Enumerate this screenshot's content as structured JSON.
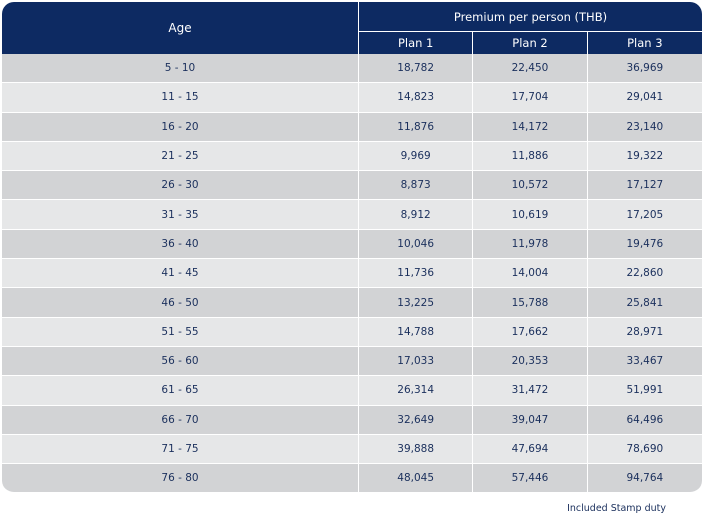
{
  "table": {
    "age_header": "Age",
    "premium_header": "Premium per person (THB)",
    "plans": [
      "Plan 1",
      "Plan 2",
      "Plan 3"
    ],
    "rows": [
      {
        "age": "5 - 10",
        "values": [
          "18,782",
          "22,450",
          "36,969"
        ]
      },
      {
        "age": "11 - 15",
        "values": [
          "14,823",
          "17,704",
          "29,041"
        ]
      },
      {
        "age": "16 - 20",
        "values": [
          "11,876",
          "14,172",
          "23,140"
        ]
      },
      {
        "age": "21 - 25",
        "values": [
          "9,969",
          "11,886",
          "19,322"
        ]
      },
      {
        "age": "26 - 30",
        "values": [
          "8,873",
          "10,572",
          "17,127"
        ]
      },
      {
        "age": "31 - 35",
        "values": [
          "8,912",
          "10,619",
          "17,205"
        ]
      },
      {
        "age": "36 - 40",
        "values": [
          "10,046",
          "11,978",
          "19,476"
        ]
      },
      {
        "age": "41 - 45",
        "values": [
          "11,736",
          "14,004",
          "22,860"
        ]
      },
      {
        "age": "46 - 50",
        "values": [
          "13,225",
          "15,788",
          "25,841"
        ]
      },
      {
        "age": "51 - 55",
        "values": [
          "14,788",
          "17,662",
          "28,971"
        ]
      },
      {
        "age": "56 - 60",
        "values": [
          "17,033",
          "20,353",
          "33,467"
        ]
      },
      {
        "age": "61 - 65",
        "values": [
          "26,314",
          "31,472",
          "51,991"
        ]
      },
      {
        "age": "66 - 70",
        "values": [
          "32,649",
          "39,047",
          "64,496"
        ]
      },
      {
        "age": "71 - 75",
        "values": [
          "39,888",
          "47,694",
          "78,690"
        ]
      },
      {
        "age": "76 - 80",
        "values": [
          "48,045",
          "57,446",
          "94,764"
        ]
      }
    ]
  },
  "footnote": "Included Stamp duty",
  "colors": {
    "header_bg": "#0d2a62",
    "row_dark": "#d2d3d5",
    "row_light": "#e6e7e8",
    "text": "#1a2f5c"
  }
}
